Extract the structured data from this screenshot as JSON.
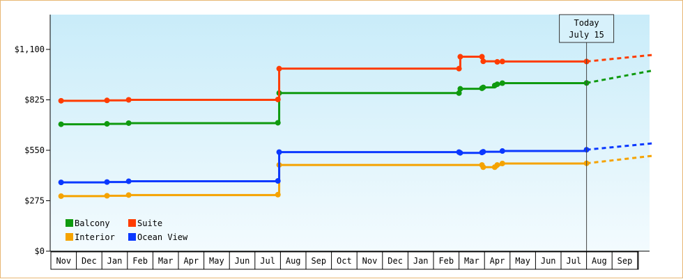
{
  "chart_data": {
    "type": "line",
    "title": "",
    "xlabel": "",
    "ylabel": "",
    "ylim": [
      0,
      1100
    ],
    "y_ticks": [
      {
        "value": 0,
        "label": "$0"
      },
      {
        "value": 275,
        "label": "$275"
      },
      {
        "value": 550,
        "label": "$550"
      },
      {
        "value": 825,
        "label": "$825"
      },
      {
        "value": 1100,
        "label": "$1,100"
      }
    ],
    "x_months": [
      "Nov",
      "Dec",
      "Jan",
      "Feb",
      "Mar",
      "Apr",
      "May",
      "Jun",
      "Jul",
      "Aug",
      "Sep",
      "Oct",
      "Nov",
      "Dec",
      "Jan",
      "Feb",
      "Mar",
      "Apr",
      "May",
      "Jun",
      "Jul",
      "Aug",
      "Sep"
    ],
    "x_unit": "months since first Nov tick",
    "today": {
      "line1": "Today",
      "line2": "July 15",
      "x": 20.5
    },
    "legend": {
      "placement": "bottom-left"
    },
    "grid": false,
    "series": [
      {
        "name": "Balcony",
        "color": "#0f9a0f",
        "points": [
          [
            -0.1,
            692
          ],
          [
            1.7,
            694
          ],
          [
            2.55,
            698
          ],
          [
            8.4,
            700
          ],
          [
            8.45,
            862
          ],
          [
            15.5,
            862
          ],
          [
            15.55,
            885
          ],
          [
            16.4,
            888
          ],
          [
            16.45,
            893
          ],
          [
            16.9,
            903
          ],
          [
            17.0,
            910
          ],
          [
            17.2,
            916
          ],
          [
            20.5,
            917
          ]
        ],
        "forecast": [
          [
            20.5,
            917
          ],
          [
            23.1,
            985
          ]
        ]
      },
      {
        "name": "Suite",
        "color": "#ff3c00",
        "points": [
          [
            -0.1,
            820
          ],
          [
            1.7,
            822
          ],
          [
            2.55,
            825
          ],
          [
            8.4,
            827
          ],
          [
            8.45,
            995
          ],
          [
            15.5,
            995
          ],
          [
            15.55,
            1060
          ],
          [
            16.4,
            1060
          ],
          [
            16.45,
            1035
          ],
          [
            17.0,
            1032
          ],
          [
            17.2,
            1034
          ],
          [
            20.5,
            1034
          ]
        ],
        "forecast": [
          [
            20.5,
            1034
          ],
          [
            23.1,
            1070
          ]
        ]
      },
      {
        "name": "Interior",
        "color": "#f5a300",
        "points": [
          [
            -0.1,
            300
          ],
          [
            1.7,
            302
          ],
          [
            2.55,
            306
          ],
          [
            8.4,
            308
          ],
          [
            8.45,
            470
          ],
          [
            16.4,
            470
          ],
          [
            16.45,
            458
          ],
          [
            16.9,
            458
          ],
          [
            17.0,
            470
          ],
          [
            17.2,
            478
          ],
          [
            20.5,
            479
          ]
        ],
        "forecast": [
          [
            20.5,
            479
          ],
          [
            23.1,
            520
          ]
        ]
      },
      {
        "name": "Ocean View",
        "color": "#0a38ff",
        "points": [
          [
            -0.1,
            375
          ],
          [
            1.7,
            377
          ],
          [
            2.55,
            381
          ],
          [
            8.4,
            383
          ],
          [
            8.45,
            540
          ],
          [
            15.5,
            540
          ],
          [
            15.55,
            536
          ],
          [
            16.4,
            538
          ],
          [
            16.45,
            542
          ],
          [
            17.2,
            546
          ],
          [
            20.5,
            553
          ]
        ],
        "forecast": [
          [
            20.5,
            553
          ],
          [
            23.1,
            588
          ]
        ]
      }
    ]
  }
}
